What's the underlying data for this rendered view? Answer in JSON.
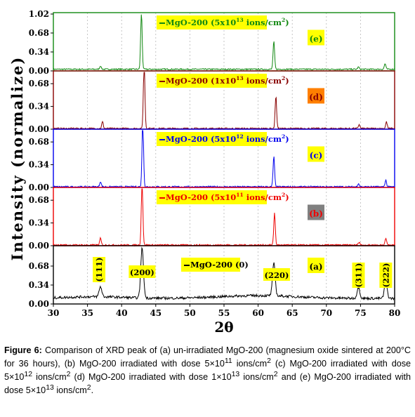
{
  "chart_data": {
    "type": "line",
    "xlabel": "2θ",
    "ylabel": "Intensity (normalize)",
    "xlim": [
      30,
      80
    ],
    "x_ticks": [
      "30",
      "35",
      "40",
      "45",
      "50",
      "55",
      "60",
      "65",
      "70",
      "75",
      "80"
    ],
    "grid": "vertical dashed",
    "panels": [
      {
        "id": "e",
        "letter": "(e)",
        "legend": "MgO-200 (5x10",
        "legend_exp": "13",
        "legend_tail": " ions/cm",
        "legend_sup2": "2",
        "legend_close": ")",
        "color": "#118811",
        "letter_bg": "#ffff00",
        "letter_color": "#118811",
        "ylim": [
          0,
          1.02
        ],
        "y_ticks": [
          "0.00",
          "0.34",
          "0.68",
          "1.02"
        ],
        "baseline": 0.03,
        "peaks": [
          [
            36.9,
            0.06
          ],
          [
            42.9,
            1.0
          ],
          [
            62.3,
            0.5
          ],
          [
            74.7,
            0.04
          ],
          [
            78.6,
            0.1
          ]
        ]
      },
      {
        "id": "d",
        "letter": "(d)",
        "legend": "MgO-200 (1x10",
        "legend_exp": "13",
        "legend_tail": " ions/cm",
        "legend_sup2": "2",
        "legend_close": ")",
        "color": "#880000",
        "letter_bg": "#ff7f00",
        "letter_color": "#880000",
        "ylim": [
          0,
          0.85
        ],
        "y_ticks": [
          "0.00",
          "0.34",
          "0.68"
        ],
        "baseline": 0.01,
        "peaks": [
          [
            37.2,
            0.1
          ],
          [
            43.3,
            1.0
          ],
          [
            62.6,
            0.48
          ],
          [
            74.8,
            0.06
          ],
          [
            78.8,
            0.1
          ]
        ]
      },
      {
        "id": "c",
        "letter": "(c)",
        "legend": "MgO-200 (5x10",
        "legend_exp": "12",
        "legend_tail": " ions/cm",
        "legend_sup2": "2",
        "legend_close": ")",
        "color": "#0000ee",
        "letter_bg": "#ffff00",
        "letter_color": "#0000ee",
        "ylim": [
          0,
          0.85
        ],
        "y_ticks": [
          "0.00",
          "0.34",
          "0.68"
        ],
        "baseline": 0.01,
        "peaks": [
          [
            36.9,
            0.08
          ],
          [
            43.1,
            1.0
          ],
          [
            62.3,
            0.45
          ],
          [
            74.7,
            0.05
          ],
          [
            78.7,
            0.1
          ]
        ]
      },
      {
        "id": "b",
        "letter": "(b)",
        "legend": "MgO-200 (5x10",
        "legend_exp": "11",
        "legend_tail": " ions/cm",
        "legend_sup2": "2",
        "legend_close": ")",
        "color": "#ee0000",
        "letter_bg": "#808080",
        "letter_color": "#ee0000",
        "ylim": [
          0,
          0.85
        ],
        "y_ticks": [
          "0.00",
          "0.34",
          "0.68"
        ],
        "baseline": 0.01,
        "peaks": [
          [
            36.9,
            0.1
          ],
          [
            43.0,
            1.0
          ],
          [
            62.4,
            0.48
          ],
          [
            74.8,
            0.05
          ],
          [
            78.7,
            0.11
          ]
        ]
      },
      {
        "id": "a",
        "letter": "(a)",
        "legend": "MgO-200 (0)",
        "legend_exp": "",
        "legend_tail": "",
        "legend_sup2": "",
        "legend_close": "",
        "color": "#000000",
        "letter_bg": "#ffff00",
        "letter_color": "#000000",
        "ylim": [
          0,
          1.02
        ],
        "y_ticks": [
          "0.00",
          "0.34",
          "0.68"
        ],
        "baseline": 0.1,
        "peaks": [
          [
            36.9,
            0.18
          ],
          [
            43.0,
            0.9
          ],
          [
            62.3,
            0.58
          ],
          [
            74.7,
            0.2
          ],
          [
            78.7,
            0.3
          ]
        ],
        "peak_labels": [
          "(111)",
          "(200)",
          "(220)",
          "(311)",
          "(222)"
        ]
      }
    ]
  },
  "caption": {
    "label": "Figure 6:",
    "text": " Comparison of XRD peak of (a) un-irradiated MgO-200 (magnesium oxide sintered at 200°C for 36 hours), (b) MgO-200 irradiated with dose 5×10",
    "sup1": "11",
    "t2": " ions/cm",
    "sup2": "2",
    "t3": " (c) MgO-200 irradiated with dose 5×10",
    "sup3": "12",
    "t4": " ions/cm",
    "sup4": "2",
    "t5": " (d) MgO-200 irradiated with dose 1×10",
    "sup5": "13",
    "t6": " ions/cm",
    "sup6": "2",
    "t7": " and (e) MgO-200 irradiated with dose 5×10",
    "sup7": "13",
    "t8": " ions/cm",
    "sup8": "2",
    "t9": "."
  }
}
